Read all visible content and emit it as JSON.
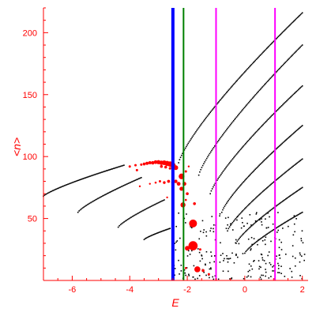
{
  "chart_data": {
    "type": "scatter",
    "title": "",
    "xlabel": "E",
    "ylabel": "<n>",
    "xlim": [
      -7,
      2.2
    ],
    "ylim": [
      0,
      220
    ],
    "grid": false,
    "colors": {
      "axes": "#ff0000",
      "black_points": "#000000",
      "red_points": "#ff0000",
      "line_blue": "#0000ff",
      "line_green": "#008000",
      "line_magenta": "#ff00ff"
    },
    "x_ticks": [
      -6,
      -4,
      -2,
      0,
      2
    ],
    "x_tick_labels": [
      "-6",
      "-4",
      "-2",
      "0",
      "2"
    ],
    "y_ticks": [
      50,
      100,
      150,
      200
    ],
    "y_tick_labels": [
      "50",
      "100",
      "150",
      "200"
    ],
    "vertical_lines": [
      {
        "x": -2.5,
        "color": "#0000ff"
      },
      {
        "x": -2.13,
        "color": "#008000"
      },
      {
        "x": -1.0,
        "color": "#ff00ff"
      },
      {
        "x": 1.05,
        "color": "#ff00ff"
      }
    ],
    "black_curves": [
      {
        "x_start": -7.0,
        "y_start": 68,
        "x_end": -4.2,
        "y_end": 93,
        "count": 70
      },
      {
        "x_start": -5.8,
        "y_start": 55,
        "x_end": -3.6,
        "y_end": 83,
        "count": 55
      },
      {
        "x_start": -4.4,
        "y_start": 43,
        "x_end": -2.8,
        "y_end": 65,
        "count": 40
      },
      {
        "x_start": -3.5,
        "y_start": 33,
        "x_end": -2.6,
        "y_end": 42,
        "count": 25
      },
      {
        "x_start": -2.3,
        "y_start": 95,
        "x_end": 2.0,
        "y_end": 216,
        "count": 130
      },
      {
        "x_start": -1.6,
        "y_start": 85,
        "x_end": 2.0,
        "y_end": 190,
        "count": 105
      },
      {
        "x_start": -1.2,
        "y_start": 70,
        "x_end": 2.0,
        "y_end": 157,
        "count": 95
      },
      {
        "x_start": -0.8,
        "y_start": 55,
        "x_end": 2.0,
        "y_end": 125,
        "count": 85
      },
      {
        "x_start": -0.6,
        "y_start": 40,
        "x_end": 2.0,
        "y_end": 98,
        "count": 75
      },
      {
        "x_start": -0.3,
        "y_start": 30,
        "x_end": 2.0,
        "y_end": 75,
        "count": 65
      },
      {
        "x_start": 0.0,
        "y_start": 22,
        "x_end": 2.0,
        "y_end": 55,
        "count": 55
      }
    ],
    "black_cloud": {
      "x_min": -2.5,
      "x_max": 2.1,
      "y_min": 1,
      "y_max": 55,
      "count": 240
    },
    "red_points": [
      {
        "x": -4.0,
        "y": 92,
        "r": 1.5
      },
      {
        "x": -3.8,
        "y": 93,
        "r": 1.5
      },
      {
        "x": -3.6,
        "y": 93.5,
        "r": 1.5
      },
      {
        "x": -3.5,
        "y": 94,
        "r": 1.8
      },
      {
        "x": -3.4,
        "y": 94.5,
        "r": 2.0
      },
      {
        "x": -3.3,
        "y": 95,
        "r": 2.0
      },
      {
        "x": -3.2,
        "y": 95,
        "r": 2.2
      },
      {
        "x": -3.1,
        "y": 95.5,
        "r": 2.4
      },
      {
        "x": -3.0,
        "y": 95.5,
        "r": 2.6
      },
      {
        "x": -2.9,
        "y": 95,
        "r": 2.8
      },
      {
        "x": -2.8,
        "y": 95,
        "r": 3.0
      },
      {
        "x": -2.7,
        "y": 94.5,
        "r": 3.2
      },
      {
        "x": -2.6,
        "y": 94,
        "r": 3.4
      },
      {
        "x": -2.5,
        "y": 93,
        "r": 3.4
      },
      {
        "x": -2.4,
        "y": 91,
        "r": 3.0
      },
      {
        "x": -2.9,
        "y": 92,
        "r": 1.8
      },
      {
        "x": -2.75,
        "y": 91.5,
        "r": 1.8
      },
      {
        "x": -2.6,
        "y": 90.5,
        "r": 1.6
      },
      {
        "x": -3.75,
        "y": 89,
        "r": 1.5
      },
      {
        "x": -3.3,
        "y": 78,
        "r": 1.2
      },
      {
        "x": -3.1,
        "y": 79,
        "r": 1.3
      },
      {
        "x": -2.95,
        "y": 80,
        "r": 1.5
      },
      {
        "x": -2.8,
        "y": 79,
        "r": 1.7
      },
      {
        "x": -2.65,
        "y": 80,
        "r": 1.9
      },
      {
        "x": -2.5,
        "y": 79,
        "r": 2.1
      },
      {
        "x": -2.4,
        "y": 80,
        "r": 2.2
      },
      {
        "x": -2.3,
        "y": 78,
        "r": 2.4
      },
      {
        "x": -2.2,
        "y": 84,
        "r": 3.6
      },
      {
        "x": -2.2,
        "y": 74,
        "r": 2.6
      },
      {
        "x": -2.1,
        "y": 78,
        "r": 2.4
      },
      {
        "x": -2.0,
        "y": 70,
        "r": 1.8
      },
      {
        "x": -2.05,
        "y": 88,
        "r": 1.5
      },
      {
        "x": -1.95,
        "y": 92,
        "r": 1.2
      },
      {
        "x": -3.65,
        "y": 76,
        "r": 1.2
      },
      {
        "x": -2.7,
        "y": 67,
        "r": 1.2
      },
      {
        "x": -2.15,
        "y": 61,
        "r": 3.2
      },
      {
        "x": -1.75,
        "y": 62,
        "r": 1.8
      },
      {
        "x": -2.05,
        "y": 65,
        "r": 1.3
      },
      {
        "x": -1.8,
        "y": 46,
        "r": 5.0
      },
      {
        "x": -1.8,
        "y": 28,
        "r": 5.8
      },
      {
        "x": -1.55,
        "y": 25,
        "r": 1.5
      },
      {
        "x": -2.0,
        "y": 26,
        "r": 3.0
      },
      {
        "x": -1.65,
        "y": 9,
        "r": 3.8
      },
      {
        "x": -1.45,
        "y": 8,
        "r": 1.8
      },
      {
        "x": -1.25,
        "y": 5,
        "r": 1.5
      },
      {
        "x": -2.05,
        "y": 10,
        "r": 1.3
      }
    ]
  }
}
